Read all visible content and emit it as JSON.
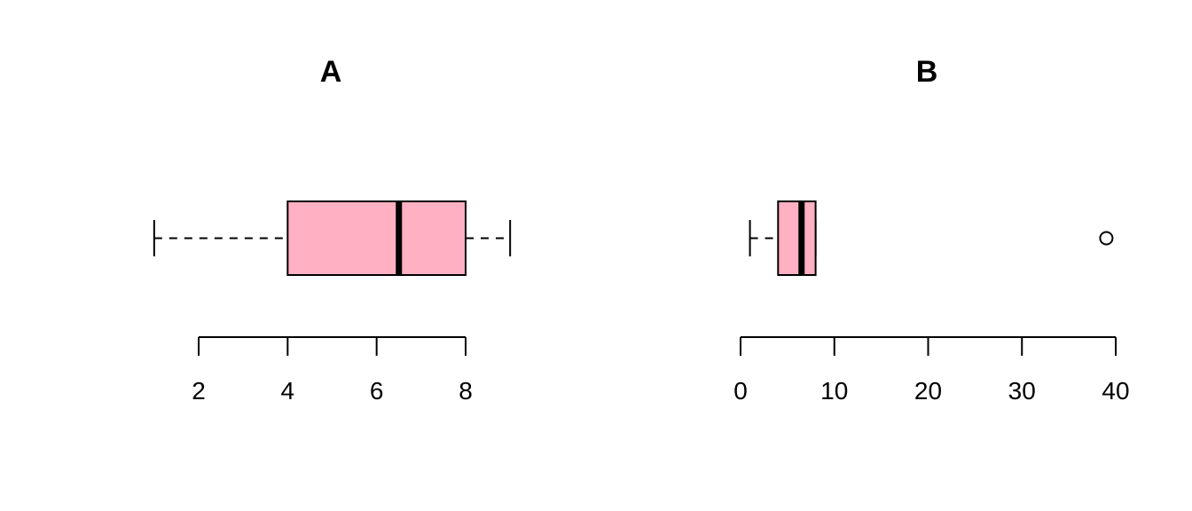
{
  "chart_data": [
    {
      "type": "boxplot",
      "orientation": "horizontal",
      "title": "A",
      "xlim": [
        1,
        9
      ],
      "ticks": [
        2,
        4,
        6,
        8
      ],
      "stats": {
        "min": 1,
        "q1": 4,
        "median": 6.5,
        "q3": 8,
        "max": 9
      },
      "outliers": [],
      "box_color": "#FFB0C2"
    },
    {
      "type": "boxplot",
      "orientation": "horizontal",
      "title": "B",
      "xlim": [
        0,
        40
      ],
      "ticks": [
        0,
        10,
        20,
        30,
        40
      ],
      "stats": {
        "min": 1,
        "q1": 4,
        "median": 6.5,
        "q3": 8,
        "max": 8
      },
      "outliers": [
        39
      ],
      "box_color": "#FFB0C2"
    }
  ]
}
